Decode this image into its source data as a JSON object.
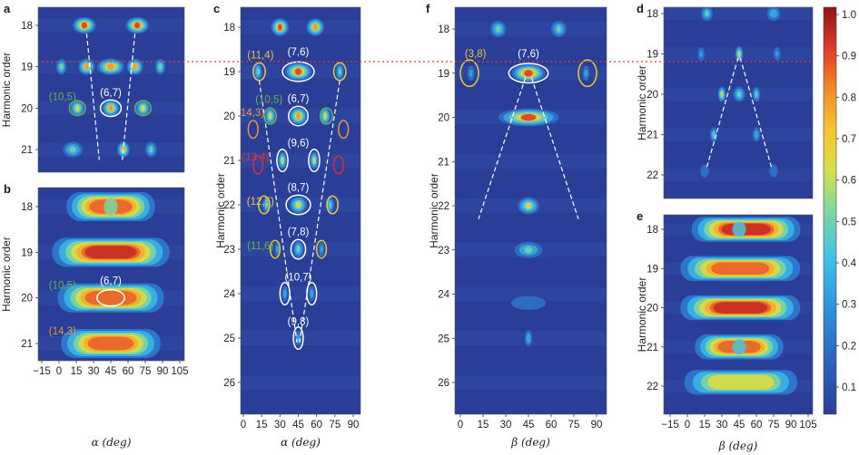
{
  "colors": {
    "background": "#2a3e98",
    "white": "#ffffff",
    "yellow": "#e8c83a",
    "green": "#6ab04c",
    "orange": "#e8973a",
    "red": "#e03030",
    "reference_line": "#e23b2e"
  },
  "chart_data": [
    {
      "panel": "a",
      "type": "heatmap",
      "xlabel": "",
      "ylabel": "Harmonic order",
      "x_range": [
        -15,
        105
      ],
      "y_range": [
        17.6,
        21.4
      ],
      "yticks": [
        "18",
        "19",
        "20",
        "21"
      ],
      "blobs": [
        {
          "x": 22,
          "y": 18,
          "w": 11,
          "i": 0.92
        },
        {
          "x": 68,
          "y": 18,
          "w": 11,
          "i": 0.92
        },
        {
          "x": 2,
          "y": 19,
          "w": 5,
          "i": 0.6
        },
        {
          "x": 24,
          "y": 19,
          "w": 8,
          "i": 0.8
        },
        {
          "x": 45,
          "y": 19,
          "w": 13,
          "i": 0.88
        },
        {
          "x": 66,
          "y": 19,
          "w": 8,
          "i": 0.8
        },
        {
          "x": 88,
          "y": 19,
          "w": 5,
          "i": 0.6
        },
        {
          "x": 16,
          "y": 20,
          "w": 7,
          "i": 0.72
        },
        {
          "x": 45,
          "y": 20,
          "w": 8,
          "i": 0.86
        },
        {
          "x": 73,
          "y": 20,
          "w": 7,
          "i": 0.72
        },
        {
          "x": 12,
          "y": 21,
          "w": 10,
          "i": 0.55
        },
        {
          "x": 56,
          "y": 21,
          "w": 6,
          "i": 0.78
        },
        {
          "x": 80,
          "y": 21,
          "w": 6,
          "i": 0.5
        }
      ],
      "ellipses": [
        {
          "x": 45,
          "y": 20,
          "rx": 9,
          "ry": 0.2,
          "color": "white"
        },
        {
          "x": 16,
          "y": 20,
          "rx": 7,
          "ry": 0.18,
          "color": "green"
        },
        {
          "x": 73,
          "y": 20,
          "rx": 7,
          "ry": 0.18,
          "color": "green"
        }
      ],
      "annotations": [
        {
          "text": "(10,5)",
          "x": 3,
          "y": 19.72,
          "color": "green"
        },
        {
          "text": "(6,7)",
          "x": 45,
          "y": 19.62,
          "color": "white"
        }
      ],
      "guides": [
        [
          [
            24,
            18.2
          ],
          [
            35,
            21.25
          ]
        ],
        [
          [
            66,
            18.2
          ],
          [
            55,
            21.25
          ]
        ]
      ]
    },
    {
      "panel": "b",
      "type": "heatmap",
      "xlabel": "α (deg)",
      "ylabel": "Harmonic order",
      "x_range": [
        -15,
        105
      ],
      "y_range": [
        17.6,
        21.4
      ],
      "xticks": [
        "−15",
        "0",
        "15",
        "30",
        "45",
        "60",
        "75",
        "90",
        "105"
      ],
      "yticks": [
        "18",
        "19",
        "20",
        "21"
      ],
      "bands": [
        {
          "y": 18,
          "x0": 5,
          "x1": 85,
          "i": 0.9,
          "dip": 45,
          "dip_depth": 0.4
        },
        {
          "y": 19,
          "x0": -8,
          "x1": 98,
          "i": 0.93
        },
        {
          "y": 20,
          "x0": -3,
          "x1": 93,
          "i": 0.9
        },
        {
          "y": 21,
          "x0": 0,
          "x1": 90,
          "i": 0.86
        }
      ],
      "ellipses": [
        {
          "x": 45,
          "y": 20,
          "rx": 12,
          "ry": 0.18,
          "color": "white"
        }
      ],
      "annotations": [
        {
          "text": "(10,5)",
          "x": 3,
          "y": 19.72,
          "color": "green"
        },
        {
          "text": "(6,7)",
          "x": 45,
          "y": 19.62,
          "color": "white"
        },
        {
          "text": "(14,3)",
          "x": 3,
          "y": 20.72,
          "color": "orange"
        }
      ]
    },
    {
      "panel": "c",
      "type": "heatmap",
      "xlabel": "α (deg)",
      "ylabel": "Harmonic order",
      "x_range": [
        0,
        90
      ],
      "y_range": [
        17.6,
        26
      ],
      "xticks": [
        "0",
        "15",
        "30",
        "45",
        "60",
        "75",
        "90"
      ],
      "yticks": [
        "18",
        "19",
        "20",
        "21",
        "22",
        "23",
        "24",
        "25",
        "26"
      ],
      "blobs": [
        {
          "x": 30,
          "y": 18,
          "w": 8,
          "i": 0.9
        },
        {
          "x": 59,
          "y": 18,
          "w": 8,
          "i": 0.85
        },
        {
          "x": 12,
          "y": 19,
          "w": 4,
          "i": 0.55
        },
        {
          "x": 45,
          "y": 19,
          "w": 12,
          "i": 0.95
        },
        {
          "x": 79,
          "y": 19,
          "w": 4,
          "i": 0.5
        },
        {
          "x": 22,
          "y": 20,
          "w": 5,
          "i": 0.7
        },
        {
          "x": 45,
          "y": 20,
          "w": 8,
          "i": 0.85
        },
        {
          "x": 67,
          "y": 20,
          "w": 5,
          "i": 0.7
        },
        {
          "x": 32,
          "y": 21,
          "w": 4,
          "i": 0.7
        },
        {
          "x": 58,
          "y": 21,
          "w": 4,
          "i": 0.7
        },
        {
          "x": 19,
          "y": 22,
          "w": 4,
          "i": 0.5
        },
        {
          "x": 45,
          "y": 22,
          "w": 8,
          "i": 0.72
        },
        {
          "x": 71,
          "y": 22,
          "w": 4,
          "i": 0.5
        },
        {
          "x": 45,
          "y": 23,
          "w": 5,
          "i": 0.55
        },
        {
          "x": 28,
          "y": 23,
          "w": 3,
          "i": 0.35
        },
        {
          "x": 64,
          "y": 23,
          "w": 3,
          "i": 0.35
        },
        {
          "x": 34,
          "y": 24,
          "w": 3,
          "i": 0.4
        },
        {
          "x": 56,
          "y": 24,
          "w": 3,
          "i": 0.4
        },
        {
          "x": 45,
          "y": 25,
          "w": 4,
          "i": 0.35
        }
      ],
      "ellipses": [
        {
          "x": 45,
          "y": 19,
          "rx": 13,
          "ry": 0.22,
          "color": "white"
        },
        {
          "x": 13,
          "y": 19,
          "rx": 5,
          "ry": 0.2,
          "color": "yellow"
        },
        {
          "x": 79,
          "y": 19,
          "rx": 5,
          "ry": 0.2,
          "color": "yellow"
        },
        {
          "x": 45,
          "y": 20,
          "rx": 8,
          "ry": 0.22,
          "color": "white"
        },
        {
          "x": 22,
          "y": 20,
          "rx": 5,
          "ry": 0.18,
          "color": "green"
        },
        {
          "x": 68,
          "y": 20,
          "rx": 5,
          "ry": 0.18,
          "color": "green"
        },
        {
          "x": 8,
          "y": 20.3,
          "rx": 4,
          "ry": 0.2,
          "color": "orange"
        },
        {
          "x": 82,
          "y": 20.3,
          "rx": 4,
          "ry": 0.2,
          "color": "orange"
        },
        {
          "x": 32,
          "y": 21,
          "rx": 4.5,
          "ry": 0.25,
          "color": "white"
        },
        {
          "x": 58,
          "y": 21,
          "rx": 4.5,
          "ry": 0.25,
          "color": "white"
        },
        {
          "x": 12,
          "y": 21.1,
          "rx": 4,
          "ry": 0.2,
          "color": "red"
        },
        {
          "x": 78,
          "y": 21.1,
          "rx": 4,
          "ry": 0.2,
          "color": "red"
        },
        {
          "x": 45,
          "y": 22,
          "rx": 10,
          "ry": 0.22,
          "color": "white"
        },
        {
          "x": 17,
          "y": 22,
          "rx": 4.5,
          "ry": 0.2,
          "color": "yellow"
        },
        {
          "x": 73,
          "y": 22,
          "rx": 4.5,
          "ry": 0.2,
          "color": "yellow"
        },
        {
          "x": 45,
          "y": 23,
          "rx": 6,
          "ry": 0.22,
          "color": "white"
        },
        {
          "x": 26,
          "y": 23,
          "rx": 4,
          "ry": 0.2,
          "color": "yellow"
        },
        {
          "x": 64,
          "y": 23,
          "rx": 4,
          "ry": 0.2,
          "color": "yellow"
        },
        {
          "x": 34,
          "y": 24,
          "rx": 4,
          "ry": 0.25,
          "color": "white"
        },
        {
          "x": 56,
          "y": 24,
          "rx": 4,
          "ry": 0.25,
          "color": "white"
        },
        {
          "x": 45,
          "y": 25,
          "rx": 4,
          "ry": 0.25,
          "color": "white"
        }
      ],
      "annotations": [
        {
          "text": "(7,6)",
          "x": 45,
          "y": 18.55,
          "color": "white"
        },
        {
          "text": "(11,4)",
          "x": 14,
          "y": 18.62,
          "color": "yellow"
        },
        {
          "text": "(6,7)",
          "x": 45,
          "y": 19.6,
          "color": "white"
        },
        {
          "text": "(10,5)",
          "x": 21,
          "y": 19.62,
          "color": "green"
        },
        {
          "text": "(14,3)",
          "x": 6,
          "y": 19.92,
          "color": "orange"
        },
        {
          "text": "(9,6)",
          "x": 45,
          "y": 20.6,
          "color": "white"
        },
        {
          "text": "(13,4)",
          "x": 10,
          "y": 20.92,
          "color": "red"
        },
        {
          "text": "(8,7)",
          "x": 45,
          "y": 21.6,
          "color": "white"
        },
        {
          "text": "(12,5)",
          "x": 14,
          "y": 21.92,
          "color": "yellow"
        },
        {
          "text": "(11,6)",
          "x": 14,
          "y": 22.92,
          "color": "green"
        },
        {
          "text": "(7,8)",
          "x": 45,
          "y": 22.6,
          "color": "white"
        },
        {
          "text": "(10,7)",
          "x": 45,
          "y": 23.62,
          "color": "white"
        },
        {
          "text": "(9,8)",
          "x": 45,
          "y": 24.62,
          "color": "white"
        }
      ],
      "guides": [
        [
          [
            13,
            19.2
          ],
          [
            44,
            25.1
          ]
        ],
        [
          [
            79,
            19.2
          ],
          [
            46,
            25.1
          ]
        ]
      ]
    },
    {
      "panel": "f",
      "type": "heatmap",
      "xlabel": "β (deg)",
      "ylabel": "Harmonic order",
      "x_range": [
        0,
        90
      ],
      "y_range": [
        17.6,
        26
      ],
      "xticks": [
        "0",
        "15",
        "30",
        "45",
        "60",
        "75",
        "90"
      ],
      "yticks": [
        "18",
        "19",
        "20",
        "21",
        "22",
        "23",
        "24",
        "25",
        "26"
      ],
      "blobs": [
        {
          "x": 25,
          "y": 18,
          "w": 6,
          "i": 0.55
        },
        {
          "x": 65,
          "y": 18,
          "w": 6,
          "i": 0.5
        },
        {
          "x": 7,
          "y": 19,
          "w": 3,
          "i": 0.35
        },
        {
          "x": 45,
          "y": 19,
          "w": 12,
          "i": 0.98
        },
        {
          "x": 83,
          "y": 19,
          "w": 3,
          "i": 0.35
        },
        {
          "x": 45,
          "y": 20,
          "w": 22,
          "i": 0.9
        },
        {
          "x": 45,
          "y": 22,
          "w": 8,
          "i": 0.68
        },
        {
          "x": 45,
          "y": 23,
          "w": 11,
          "i": 0.5
        },
        {
          "x": 45,
          "y": 24.2,
          "w": 16,
          "i": 0.28
        },
        {
          "x": 45,
          "y": 25,
          "w": 3,
          "i": 0.45
        }
      ],
      "ellipses": [
        {
          "x": 45,
          "y": 19,
          "rx": 13,
          "ry": 0.22,
          "color": "white"
        },
        {
          "x": 6,
          "y": 19,
          "rx": 6,
          "ry": 0.3,
          "color": "yellow"
        },
        {
          "x": 84,
          "y": 19,
          "rx": 6,
          "ry": 0.3,
          "color": "yellow"
        }
      ],
      "annotations": [
        {
          "text": "(3,8)",
          "x": 10,
          "y": 18.55,
          "color": "yellow"
        },
        {
          "text": "(7,6)",
          "x": 45,
          "y": 18.55,
          "color": "white"
        }
      ],
      "guides": [
        [
          [
            43,
            19.1
          ],
          [
            12,
            22.3
          ]
        ],
        [
          [
            47,
            19.1
          ],
          [
            78,
            22.3
          ]
        ]
      ]
    },
    {
      "panel": "d",
      "type": "heatmap",
      "xlabel": "",
      "ylabel": "Harmonic order",
      "x_range": [
        -15,
        105
      ],
      "y_range": [
        17.6,
        22
      ],
      "yticks": [
        "18",
        "19",
        "20",
        "21",
        "22"
      ],
      "blobs": [
        {
          "x": 17,
          "y": 18,
          "w": 6,
          "i": 0.5
        },
        {
          "x": 75,
          "y": 18,
          "w": 7,
          "i": 0.45
        },
        {
          "x": 12,
          "y": 19,
          "w": 4,
          "i": 0.32
        },
        {
          "x": 45,
          "y": 19,
          "w": 4,
          "i": 0.7
        },
        {
          "x": 78,
          "y": 19,
          "w": 4,
          "i": 0.32
        },
        {
          "x": 30,
          "y": 20,
          "w": 4,
          "i": 0.7
        },
        {
          "x": 45,
          "y": 20,
          "w": 6,
          "i": 0.55
        },
        {
          "x": 60,
          "y": 20,
          "w": 4,
          "i": 0.5
        },
        {
          "x": 23,
          "y": 21,
          "w": 4,
          "i": 0.48
        },
        {
          "x": 60,
          "y": 21,
          "w": 4,
          "i": 0.42
        },
        {
          "x": 15,
          "y": 21.9,
          "w": 5,
          "i": 0.3
        },
        {
          "x": 75,
          "y": 21.9,
          "w": 5,
          "i": 0.3
        }
      ],
      "guides": [
        [
          [
            44,
            19.1
          ],
          [
            17,
            21.8
          ]
        ],
        [
          [
            46,
            19.1
          ],
          [
            73,
            21.8
          ]
        ]
      ]
    },
    {
      "panel": "e",
      "type": "heatmap",
      "xlabel": "β (deg)",
      "ylabel": "Harmonic order",
      "x_range": [
        -15,
        105
      ],
      "y_range": [
        17.6,
        22
      ],
      "xticks": [
        "−15",
        "0",
        "15",
        "30",
        "45",
        "60",
        "75",
        "90",
        "105"
      ],
      "yticks": [
        "18",
        "19",
        "20",
        "21",
        "22"
      ],
      "bands": [
        {
          "y": 18,
          "x0": 2,
          "x1": 100,
          "i": 0.95,
          "dip": 45,
          "dip_depth": 0.55
        },
        {
          "y": 19,
          "x0": -8,
          "x1": 100,
          "i": 0.9
        },
        {
          "y": 20,
          "x0": -8,
          "x1": 100,
          "i": 0.95
        },
        {
          "y": 21,
          "x0": 5,
          "x1": 85,
          "i": 0.9,
          "dip": 45,
          "dip_depth": 0.5
        },
        {
          "y": 21.9,
          "x0": -5,
          "x1": 98,
          "i": 0.72
        }
      ]
    },
    {
      "panel": "colorbar",
      "type": "heatmap",
      "ticks": [
        "1.0",
        "0.9",
        "0.8",
        "0.7",
        "0.6",
        "0.5",
        "0.4",
        "0.3",
        "0.2",
        "0.1"
      ],
      "range": [
        0.0,
        1.0
      ]
    }
  ]
}
